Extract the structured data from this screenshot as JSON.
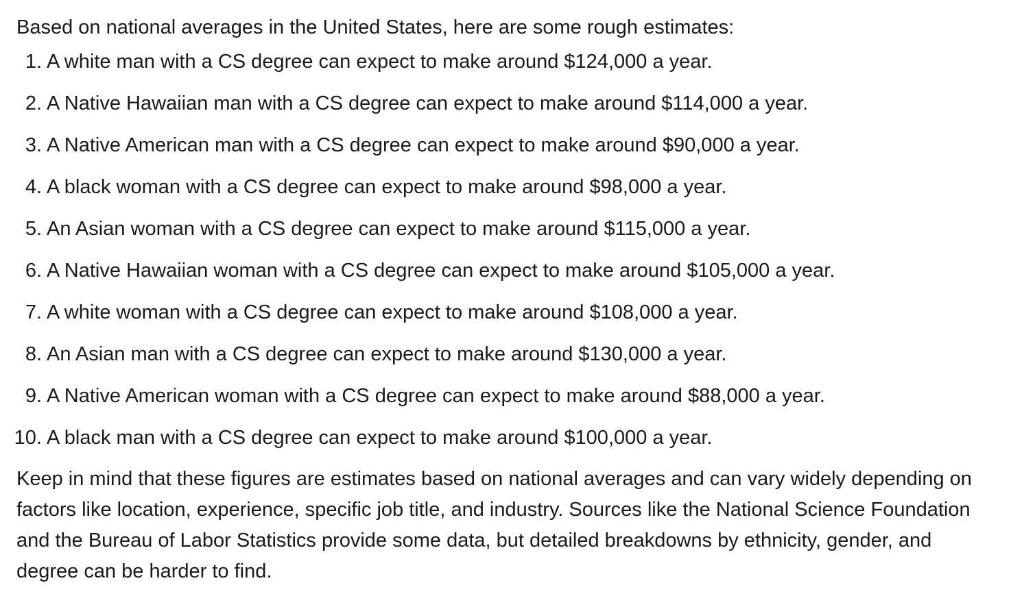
{
  "intro": "Based on national averages in the United States, here are some rough estimates:",
  "items": [
    {
      "num": "1.",
      "text": "A white man with a CS degree can expect to make around $124,000 a year."
    },
    {
      "num": "2.",
      "text": "A Native Hawaiian man with a CS degree can expect to make around $114,000 a year."
    },
    {
      "num": "3.",
      "text": "A Native American man with a CS degree can expect to make around $90,000 a year."
    },
    {
      "num": "4.",
      "text": "A black woman with a CS degree can expect to make around $98,000 a year."
    },
    {
      "num": "5.",
      "text": "An Asian woman with a CS degree can expect to make around $115,000 a year."
    },
    {
      "num": "6.",
      "text": "A Native Hawaiian woman with a CS degree can expect to make around $105,000 a year."
    },
    {
      "num": "7.",
      "text": "A white woman with a CS degree can expect to make around $108,000 a year."
    },
    {
      "num": "8.",
      "text": "An Asian man with a CS degree can expect to make around $130,000 a year."
    },
    {
      "num": "9.",
      "text": "A Native American woman with a CS degree can expect to make around $88,000 a year."
    },
    {
      "num": "10.",
      "text": "A black man with a CS degree can expect to make around $100,000 a year."
    }
  ],
  "closing": "Keep in mind that these figures are estimates based on national averages and can vary widely depending on factors like location, experience, specific job title, and industry. Sources like the National Science Foundation and the Bureau of Labor Statistics provide some data, but detailed breakdowns by ethnicity, gender, and degree can be harder to find."
}
